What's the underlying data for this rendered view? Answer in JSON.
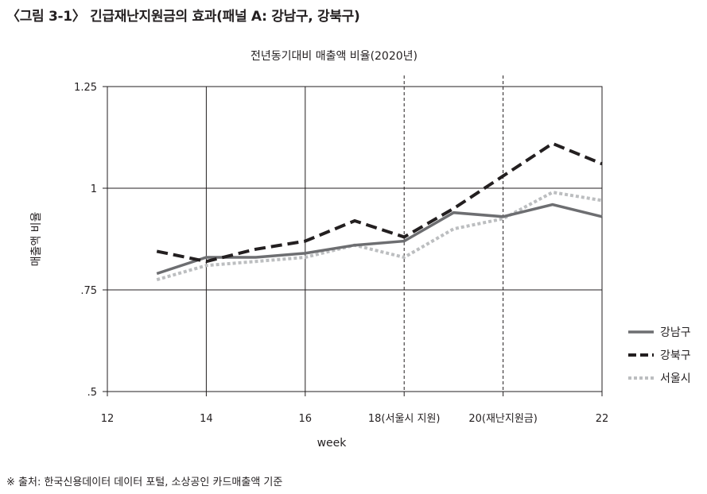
{
  "figure": {
    "title": "〈그림 3-1〉 긴급재난지원금의 효과(패널 A: 강남구, 강북구)",
    "source": "※ 출처: 한국신용데이터 데이터 포털, 소상공인 카드매출액 기준"
  },
  "chart_data": {
    "type": "line",
    "title": "전년동기대비 매출액 비율(2020년)",
    "xlabel": "week",
    "ylabel": "매출액 비율",
    "xlim": [
      12,
      22
    ],
    "ylim": [
      0.5,
      1.25
    ],
    "x_ticks": [
      {
        "value": 12,
        "label": "12"
      },
      {
        "value": 14,
        "label": "14"
      },
      {
        "value": 16,
        "label": "16"
      },
      {
        "value": 18,
        "label": "18(서울시 지원)"
      },
      {
        "value": 20,
        "label": "20(재난지원금)"
      },
      {
        "value": 22,
        "label": "22"
      }
    ],
    "y_ticks": [
      {
        "value": 0.5,
        "label": ".5"
      },
      {
        "value": 0.75,
        "label": ".75"
      },
      {
        "value": 1.0,
        "label": "1"
      },
      {
        "value": 1.25,
        "label": "1.25"
      }
    ],
    "grid": true,
    "legend_position": "right",
    "event_lines": [
      18,
      20
    ],
    "x": [
      13,
      14,
      15,
      16,
      17,
      18,
      19,
      20,
      21,
      22
    ],
    "series": [
      {
        "name": "강남구",
        "color": "#6d6e71",
        "style": "solid",
        "values": [
          0.79,
          0.83,
          0.83,
          0.84,
          0.86,
          0.87,
          0.94,
          0.93,
          0.96,
          0.93
        ]
      },
      {
        "name": "강북구",
        "color": "#231f20",
        "style": "dashed",
        "values": [
          0.845,
          0.82,
          0.85,
          0.87,
          0.92,
          0.88,
          0.95,
          1.03,
          1.11,
          1.06
        ]
      },
      {
        "name": "서울시",
        "color": "#bcbec0",
        "style": "dotted",
        "values": [
          0.775,
          0.81,
          0.82,
          0.83,
          0.86,
          0.83,
          0.9,
          0.925,
          0.99,
          0.97
        ]
      }
    ]
  }
}
